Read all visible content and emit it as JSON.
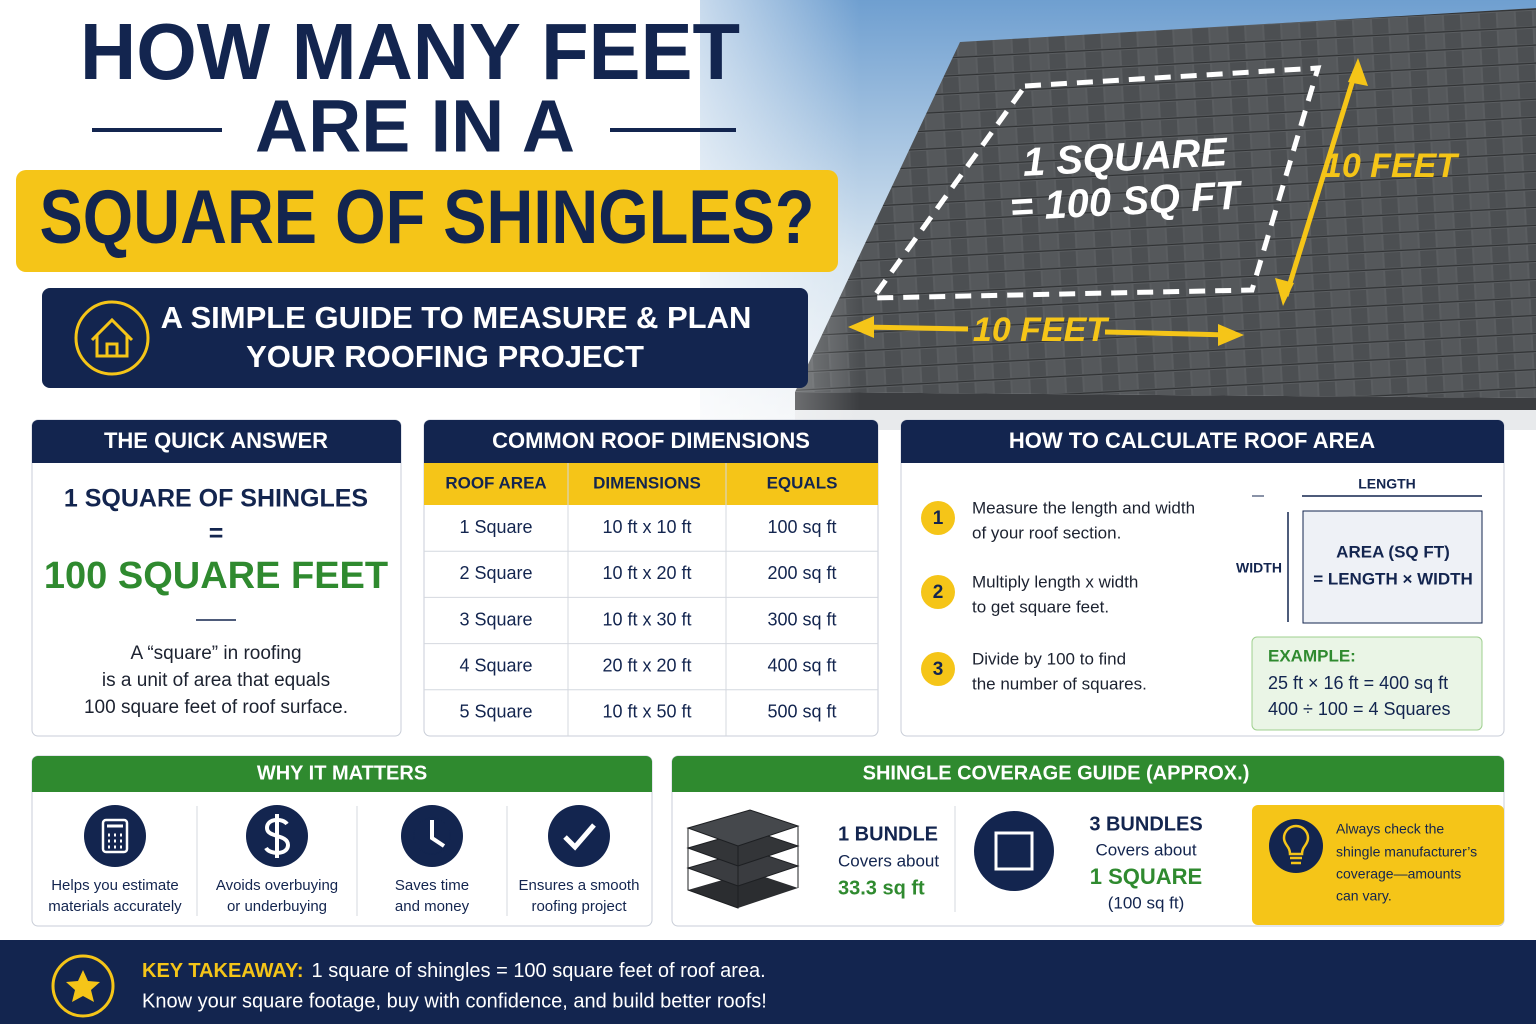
{
  "header": {
    "title_line1": "HOW MANY FEET",
    "title_line2": "ARE IN A",
    "title_highlight": "SQUARE OF SHINGLES?",
    "subtitle_line1": "A SIMPLE GUIDE TO MEASURE & PLAN",
    "subtitle_line2": "YOUR ROOFING PROJECT"
  },
  "roof_image": {
    "square_label_1": "1 SQUARE",
    "square_label_2": "= 100 SQ FT",
    "height_label": "10 FEET",
    "width_label": "10 FEET"
  },
  "quick_answer": {
    "heading": "THE QUICK ANSWER",
    "line1": "1 SQUARE OF SHINGLES",
    "equals": "=",
    "result": "100 SQUARE FEET",
    "description": [
      "A “square” in roofing",
      "is a unit of area that equals",
      "100 square feet of roof surface."
    ]
  },
  "dimensions_table": {
    "heading": "COMMON ROOF DIMENSIONS",
    "columns": [
      "ROOF AREA",
      "DIMENSIONS",
      "EQUALS"
    ],
    "rows": [
      [
        "1 Square",
        "10 ft x 10 ft",
        "100 sq ft"
      ],
      [
        "2 Square",
        "10 ft x 20 ft",
        "200 sq ft"
      ],
      [
        "3 Square",
        "10 ft x 30 ft",
        "300 sq ft"
      ],
      [
        "4 Square",
        "20 ft x 20 ft",
        "400 sq ft"
      ],
      [
        "5 Square",
        "10 ft x 50 ft",
        "500 sq ft"
      ]
    ]
  },
  "calculate": {
    "heading": "HOW TO CALCULATE ROOF AREA",
    "steps": [
      {
        "number": "1",
        "text": [
          "Measure the length and width",
          "of your roof section."
        ]
      },
      {
        "number": "2",
        "text": [
          "Multiply length x width",
          "to get square feet."
        ]
      },
      {
        "number": "3",
        "text": [
          "Divide by 100 to find",
          "the number of squares."
        ]
      }
    ],
    "diagram": {
      "length": "LENGTH",
      "width": "WIDTH",
      "formula": [
        "AREA (SQ FT)",
        "= LENGTH × WIDTH"
      ]
    },
    "example": {
      "label": "EXAMPLE:",
      "lines": [
        "25 ft × 16 ft = 400 sq ft",
        "400 ÷ 100 = 4 Squares"
      ]
    }
  },
  "why_it_matters": {
    "heading": "WHY IT MATTERS",
    "items": [
      [
        "Helps you estimate",
        "materials accurately"
      ],
      [
        "Avoids overbuying",
        "or underbuying"
      ],
      [
        "Saves time",
        "and money"
      ],
      [
        "Ensures a smooth",
        "roofing project"
      ]
    ]
  },
  "coverage": {
    "heading": "SHINGLE COVERAGE GUIDE (APPROX.)",
    "bundle": {
      "title": "1 BUNDLE",
      "text": "Covers about",
      "amount": "33.3 sq ft"
    },
    "bundles": {
      "title": "3 BUNDLES",
      "text": "Covers about",
      "amount": "1 SQUARE",
      "note": "(100 sq ft)"
    },
    "tip": [
      "Always check the",
      "shingle manufacturer’s",
      "coverage—amounts",
      "can vary."
    ]
  },
  "takeaway": {
    "label": "KEY TAKEAWAY:",
    "line1": "1 square of shingles = 100 square feet of roof area.",
    "line2": "Know your square footage, buy with confidence, and build better roofs!"
  }
}
